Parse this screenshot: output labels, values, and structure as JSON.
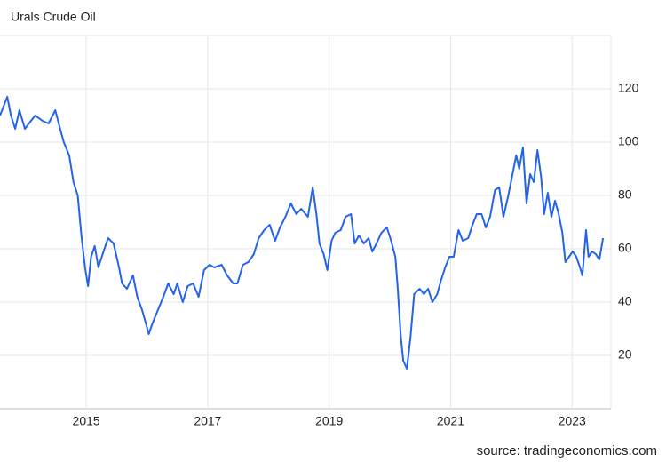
{
  "chart_data": {
    "type": "line",
    "title": "Urals Crude Oil",
    "source": "source: tradingeconomics.com",
    "color": "#2563eb",
    "grid": true,
    "xlim": [
      2013.58,
      2023.64
    ],
    "xticks": [
      2015,
      2017,
      2019,
      2021,
      2023
    ],
    "ylim": [
      0,
      140
    ],
    "yticks": [
      20,
      40,
      60,
      80,
      100,
      120
    ],
    "x": [
      2013.58,
      2013.7,
      2013.76,
      2013.83,
      2013.9,
      2013.99,
      2014.09,
      2014.16,
      2014.28,
      2014.38,
      2014.49,
      2014.57,
      2014.63,
      2014.72,
      2014.79,
      2014.86,
      2014.92,
      2014.98,
      2015.03,
      2015.08,
      2015.14,
      2015.2,
      2015.27,
      2015.36,
      2015.45,
      2015.54,
      2015.59,
      2015.67,
      2015.77,
      2015.84,
      2015.92,
      2015.97,
      2016.03,
      2016.09,
      2016.18,
      2016.27,
      2016.35,
      2016.44,
      2016.5,
      2016.59,
      2016.67,
      2016.76,
      2016.85,
      2016.94,
      2017.03,
      2017.11,
      2017.23,
      2017.32,
      2017.42,
      2017.49,
      2017.58,
      2017.67,
      2017.76,
      2017.84,
      2017.93,
      2018.02,
      2018.11,
      2018.19,
      2018.28,
      2018.37,
      2018.46,
      2018.54,
      2018.65,
      2018.73,
      2018.79,
      2018.84,
      2018.91,
      2018.97,
      2019.04,
      2019.1,
      2019.19,
      2019.27,
      2019.36,
      2019.42,
      2019.49,
      2019.57,
      2019.65,
      2019.71,
      2019.78,
      2019.86,
      2019.95,
      2020.02,
      2020.09,
      2020.13,
      2020.18,
      2020.22,
      2020.28,
      2020.34,
      2020.4,
      2020.49,
      2020.56,
      2020.63,
      2020.7,
      2020.78,
      2020.84,
      2020.91,
      2020.98,
      2021.05,
      2021.13,
      2021.2,
      2021.29,
      2021.36,
      2021.43,
      2021.51,
      2021.58,
      2021.65,
      2021.73,
      2021.8,
      2021.87,
      2021.95,
      2022.02,
      2022.08,
      2022.13,
      2022.19,
      2022.25,
      2022.31,
      2022.37,
      2022.43,
      2022.49,
      2022.54,
      2022.6,
      2022.66,
      2022.72,
      2022.78,
      2022.84,
      2022.89,
      2022.95,
      2023.01,
      2023.07,
      2023.13,
      2023.17,
      2023.23,
      2023.27,
      2023.33,
      2023.39,
      2023.45,
      2023.51
    ],
    "values": [
      110,
      117,
      110,
      105,
      112,
      105,
      108,
      110,
      108,
      107,
      112,
      105,
      100,
      95,
      85,
      80,
      65,
      53,
      46,
      57,
      61,
      53,
      58,
      64,
      62,
      53,
      47,
      45,
      50,
      42,
      37,
      33,
      28,
      32,
      37,
      42,
      47,
      43,
      47,
      40,
      46,
      47,
      42,
      52,
      54,
      53,
      54,
      50,
      47,
      47,
      54,
      55,
      58,
      64,
      67,
      69,
      63,
      68,
      72,
      77,
      73,
      75,
      72,
      83,
      73,
      62,
      58,
      52,
      63,
      66,
      67,
      72,
      73,
      62,
      65,
      62,
      64,
      59,
      62,
      66,
      68,
      63,
      57,
      45,
      27,
      18,
      15,
      27,
      43,
      45,
      43,
      45,
      40,
      43,
      48,
      53,
      57,
      57,
      67,
      63,
      64,
      69,
      73,
      73,
      68,
      72,
      82,
      83,
      72,
      80,
      88,
      95,
      90,
      98,
      77,
      88,
      85,
      97,
      87,
      73,
      81,
      72,
      78,
      73,
      66,
      55,
      57,
      59,
      57,
      53,
      50,
      67,
      57,
      59,
      58,
      56,
      64
    ]
  }
}
